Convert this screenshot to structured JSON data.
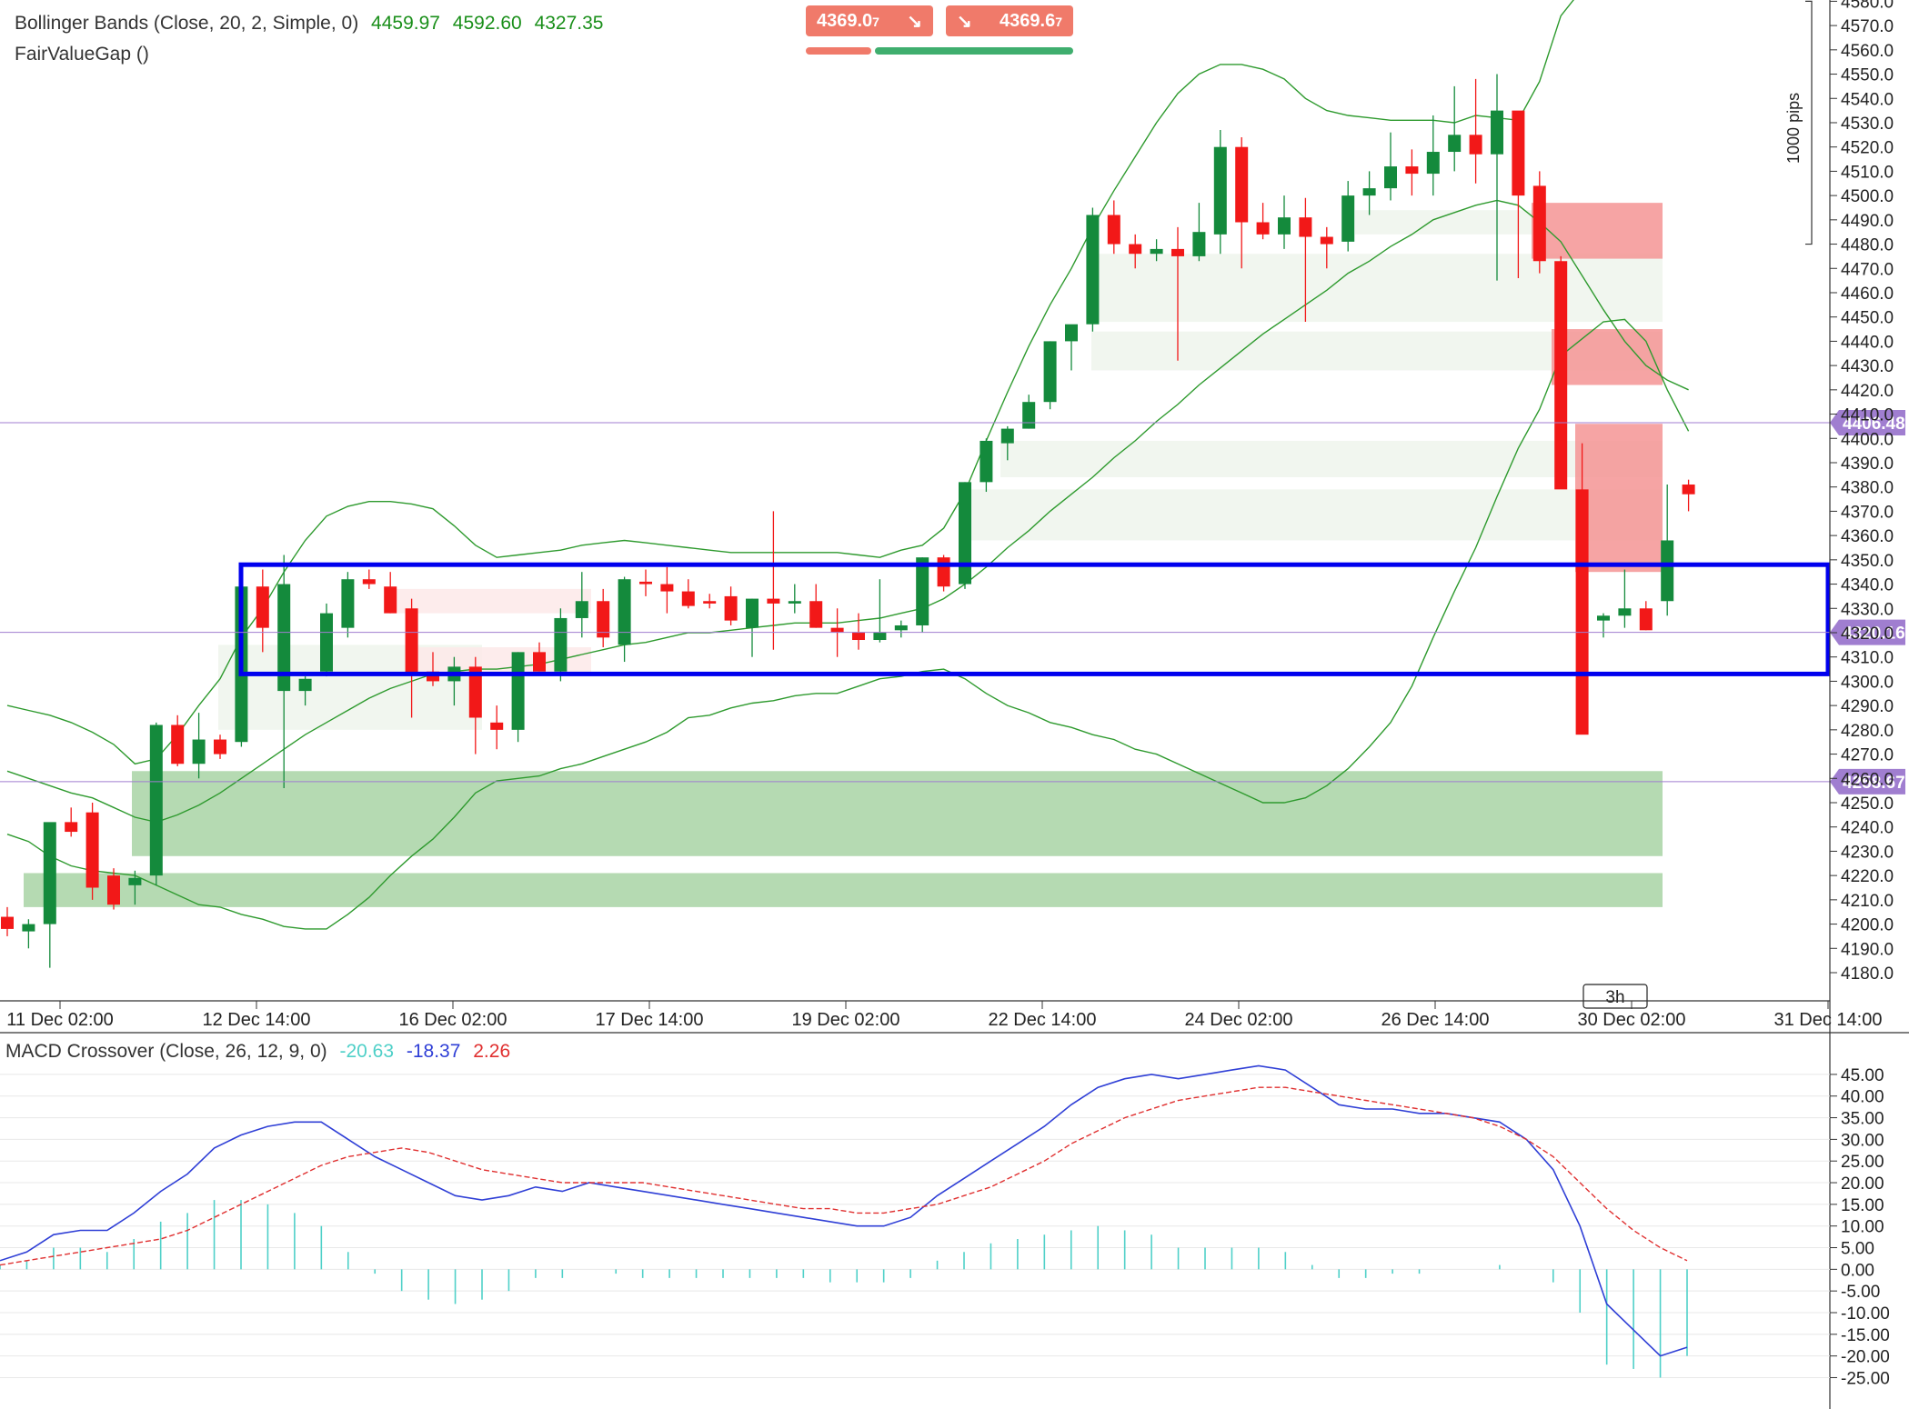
{
  "price_panel": {
    "indicator_bb": {
      "name": "Bollinger Bands (Close, 20, 2, Simple, 0)",
      "mid": "4459.97",
      "upper": "4592.60",
      "lower": "4327.35"
    },
    "indicator_fvg": {
      "name": "FairValueGap ()"
    },
    "sell_button": {
      "price": "4369.0",
      "pipette": "7",
      "arrow": "↘"
    },
    "buy_button": {
      "price": "4369.6",
      "pipette": "7",
      "arrow": "↘"
    },
    "pips_label": "1000 pips",
    "timeframe_label": "3h",
    "price_tags": [
      {
        "value": "4406.48"
      },
      {
        "value": "4320.16"
      },
      {
        "value": "4258.67"
      }
    ],
    "y_axis": {
      "min": 4180,
      "max": 4580,
      "step": 10
    },
    "x_axis_labels": [
      "11 Dec 02:00",
      "12 Dec 14:00",
      "16 Dec 02:00",
      "17 Dec 14:00",
      "19 Dec 02:00",
      "22 Dec 14:00",
      "24 Dec 02:00",
      "26 Dec 14:00",
      "30 Dec 02:00",
      "31 Dec 14:00"
    ]
  },
  "macd_panel": {
    "name": "MACD Crossover (Close, 26, 12, 9, 0)",
    "value_hist": "-20.63",
    "value_macd": "-18.37",
    "value_signal": "2.26",
    "y_ticks": [
      45,
      40,
      35,
      30,
      25,
      20,
      15,
      10,
      5,
      0,
      -5,
      -10,
      -15,
      -20,
      -25
    ]
  },
  "colors": {
    "bull": "#148a3c",
    "bear": "#f21818",
    "bb_line": "#2e9a2e",
    "selection_box": "#0000ee",
    "fvg_bull_strong": "#a8d4a4",
    "fvg_bull_light": "#eef5ec",
    "fvg_bear_strong": "#f59494",
    "fvg_bear_light": "#fde9e9",
    "tag_purple": "#a07ed0",
    "macd_line": "#2f3fd6",
    "signal_line": "#e03030",
    "hist": "#4fd0c8"
  },
  "chart_data": {
    "type": "candlestick",
    "title": "",
    "ylim": [
      4180,
      4580
    ],
    "series": [
      {
        "name": "OHLC",
        "values": [
          [
            4203,
            4207,
            4195,
            4198
          ],
          [
            4197,
            4202,
            4190,
            4200
          ],
          [
            4200,
            4240,
            4182,
            4242
          ],
          [
            4242,
            4248,
            4236,
            4238
          ],
          [
            4246,
            4250,
            4210,
            4215
          ],
          [
            4220,
            4223,
            4206,
            4208
          ],
          [
            4216,
            4222,
            4208,
            4219
          ],
          [
            4220,
            4283,
            4216,
            4282
          ],
          [
            4282,
            4286,
            4265,
            4266
          ],
          [
            4266,
            4287,
            4260,
            4276
          ],
          [
            4276,
            4278,
            4268,
            4270
          ],
          [
            4275,
            4338,
            4273,
            4339
          ],
          [
            4339,
            4346,
            4312,
            4322
          ],
          [
            4296,
            4352,
            4256,
            4340
          ],
          [
            4296,
            4302,
            4290,
            4301
          ],
          [
            4304,
            4332,
            4302,
            4328
          ],
          [
            4322,
            4345,
            4318,
            4342
          ],
          [
            4342,
            4346,
            4338,
            4340
          ],
          [
            4339,
            4345,
            4328,
            4328
          ],
          [
            4330,
            4334,
            4285,
            4303
          ],
          [
            4304,
            4312,
            4298,
            4300
          ],
          [
            4300,
            4310,
            4290,
            4306
          ],
          [
            4306,
            4310,
            4270,
            4285
          ],
          [
            4283,
            4290,
            4272,
            4280
          ],
          [
            4280,
            4312,
            4275,
            4312
          ],
          [
            4312,
            4316,
            4304,
            4304
          ],
          [
            4304,
            4330,
            4300,
            4326
          ],
          [
            4326,
            4345,
            4318,
            4333
          ],
          [
            4333,
            4338,
            4314,
            4318
          ],
          [
            4315,
            4343,
            4308,
            4342
          ],
          [
            4341,
            4346,
            4335,
            4340
          ],
          [
            4340,
            4347,
            4328,
            4337
          ],
          [
            4337,
            4342,
            4330,
            4331
          ],
          [
            4333,
            4336,
            4330,
            4332
          ],
          [
            4335,
            4339,
            4323,
            4325
          ],
          [
            4322,
            4334,
            4310,
            4334
          ],
          [
            4334,
            4370,
            4313,
            4332
          ],
          [
            4332,
            4340,
            4328,
            4333
          ],
          [
            4333,
            4340,
            4322,
            4322
          ],
          [
            4322,
            4330,
            4310,
            4320
          ],
          [
            4320,
            4328,
            4313,
            4317
          ],
          [
            4317,
            4342,
            4316,
            4320
          ],
          [
            4321,
            4325,
            4318,
            4323
          ],
          [
            4323,
            4351,
            4320,
            4351
          ],
          [
            4351,
            4352,
            4337,
            4339
          ],
          [
            4340,
            4382,
            4338,
            4382
          ],
          [
            4382,
            4400,
            4378,
            4399
          ],
          [
            4398,
            4405,
            4391,
            4404
          ],
          [
            4404,
            4418,
            4404,
            4415
          ],
          [
            4415,
            4440,
            4412,
            4440
          ],
          [
            4440,
            4445,
            4428,
            4447
          ],
          [
            4447,
            4495,
            4444,
            4492
          ],
          [
            4492,
            4498,
            4476,
            4480
          ],
          [
            4480,
            4484,
            4470,
            4476
          ],
          [
            4476,
            4482,
            4473,
            4478
          ],
          [
            4478,
            4487,
            4432,
            4475
          ],
          [
            4475,
            4497,
            4473,
            4485
          ],
          [
            4484,
            4527,
            4476,
            4520
          ],
          [
            4520,
            4524,
            4470,
            4489
          ],
          [
            4489,
            4497,
            4482,
            4484
          ],
          [
            4484,
            4500,
            4478,
            4491
          ],
          [
            4491,
            4499,
            4448,
            4483
          ],
          [
            4483,
            4487,
            4470,
            4480
          ],
          [
            4481,
            4506,
            4477,
            4500
          ],
          [
            4500,
            4510,
            4492,
            4503
          ],
          [
            4503,
            4526,
            4498,
            4512
          ],
          [
            4512,
            4519,
            4500,
            4509
          ],
          [
            4509,
            4533,
            4500,
            4518
          ],
          [
            4518,
            4545,
            4510,
            4525
          ],
          [
            4525,
            4548,
            4505,
            4517
          ],
          [
            4517,
            4550,
            4465,
            4535
          ],
          [
            4535,
            4522,
            4466,
            4500
          ],
          [
            4504,
            4510,
            4468,
            4473
          ],
          [
            4473,
            4475,
            4390,
            4379
          ],
          [
            4379,
            4398,
            4303,
            4278
          ],
          [
            4325,
            4328,
            4318,
            4327
          ],
          [
            4327,
            4346,
            4322,
            4330
          ],
          [
            4330,
            4333,
            4321,
            4321
          ],
          [
            4333,
            4381,
            4327,
            4358
          ],
          [
            4381,
            4383,
            4370,
            4377
          ]
        ]
      }
    ],
    "bollinger_mid": [
      4263,
      4260,
      4257,
      4254,
      4252,
      4248,
      4244,
      4242,
      4245,
      4249,
      4254,
      4260,
      4266,
      4272,
      4278,
      4283,
      4288,
      4293,
      4297,
      4300,
      4303,
      4304,
      4305,
      4305,
      4306,
      4307,
      4309,
      4311,
      4313,
      4315,
      4316,
      4318,
      4320,
      4320,
      4321,
      4322,
      4323,
      4324,
      4324,
      4324,
      4325,
      4326,
      4328,
      4330,
      4334,
      4340,
      4347,
      4355,
      4362,
      4370,
      4377,
      4384,
      4392,
      4399,
      4407,
      4414,
      4422,
      4429,
      4436,
      4443,
      4449,
      4455,
      4461,
      4468,
      4473,
      4479,
      4484,
      4490,
      4493,
      4496,
      4498,
      4496,
      4489,
      4481,
      4467,
      4453,
      4440,
      4430,
      4424,
      4420
    ],
    "bollinger_upper": [
      4290,
      4288,
      4286,
      4283,
      4279,
      4274,
      4266,
      4268,
      4278,
      4290,
      4301,
      4318,
      4330,
      4345,
      4358,
      4368,
      4372,
      4374,
      4374,
      4373,
      4371,
      4364,
      4356,
      4351,
      4352,
      4353,
      4354,
      4356,
      4357,
      4358,
      4357,
      4356,
      4355,
      4354,
      4353,
      4353,
      4353,
      4353,
      4353,
      4353,
      4352,
      4351,
      4354,
      4356,
      4363,
      4378,
      4399,
      4419,
      4438,
      4455,
      4470,
      4487,
      4502,
      4516,
      4530,
      4542,
      4550,
      4554,
      4554,
      4552,
      4548,
      4540,
      4535,
      4533,
      4532,
      4531,
      4531,
      4531,
      4530,
      4533,
      4532,
      4531,
      4547,
      4574,
      4585,
      4594,
      4592,
      4590,
      4590,
      4592
    ],
    "bollinger_lower": [
      4237,
      4234,
      4228,
      4224,
      4222,
      4221,
      4220,
      4216,
      4212,
      4208,
      4207,
      4204,
      4202,
      4199,
      4198,
      4198,
      4204,
      4211,
      4220,
      4228,
      4235,
      4244,
      4254,
      4259,
      4260,
      4261,
      4264,
      4266,
      4269,
      4272,
      4275,
      4279,
      4285,
      4286,
      4289,
      4291,
      4292,
      4294,
      4295,
      4295,
      4298,
      4301,
      4302,
      4304,
      4305,
      4301,
      4295,
      4290,
      4287,
      4283,
      4281,
      4278,
      4276,
      4272,
      4270,
      4266,
      4262,
      4258,
      4254,
      4250,
      4250,
      4252,
      4257,
      4264,
      4273,
      4283,
      4298,
      4318,
      4337,
      4355,
      4376,
      4396,
      4412,
      4434,
      4441,
      4448,
      4449,
      4440,
      4420,
      4403
    ],
    "macd_line": [
      2,
      4,
      8,
      9,
      9,
      13,
      18,
      22,
      28,
      31,
      33,
      34,
      34,
      30,
      26,
      23,
      20,
      17,
      16,
      17,
      19,
      18,
      20,
      19,
      18,
      17,
      16,
      15,
      14,
      13,
      12,
      11,
      10,
      10,
      12,
      17,
      21,
      25,
      29,
      33,
      38,
      42,
      44,
      45,
      44,
      45,
      46,
      47,
      46,
      42,
      38,
      37,
      37,
      36,
      36,
      35,
      34,
      30,
      23,
      10,
      -8,
      -14,
      -20,
      -18
    ],
    "signal_line": [
      1,
      2,
      3,
      4,
      5,
      6,
      7,
      9,
      12,
      15,
      18,
      21,
      24,
      26,
      27,
      28,
      27,
      25,
      23,
      22,
      21,
      20,
      20,
      20,
      20,
      19,
      18,
      17,
      16,
      15,
      14,
      14,
      13,
      13,
      14,
      15,
      17,
      19,
      22,
      25,
      29,
      32,
      35,
      37,
      39,
      40,
      41,
      42,
      42,
      41,
      40,
      39,
      38,
      37,
      36,
      35,
      33,
      30,
      26,
      20,
      14,
      9,
      5,
      2
    ],
    "histogram": [
      1,
      2,
      5,
      5,
      4,
      7,
      11,
      13,
      16,
      16,
      15,
      13,
      10,
      4,
      -1,
      -5,
      -7,
      -8,
      -7,
      -5,
      -2,
      -2,
      0,
      -1,
      -2,
      -2,
      -2,
      -2,
      -2,
      -2,
      -2,
      -3,
      -3,
      -3,
      -2,
      2,
      4,
      6,
      7,
      8,
      9,
      10,
      9,
      8,
      5,
      5,
      5,
      5,
      4,
      1,
      -2,
      -2,
      -1,
      -1,
      0,
      0,
      1,
      0,
      -3,
      -10,
      -22,
      -23,
      -25,
      -20
    ]
  }
}
